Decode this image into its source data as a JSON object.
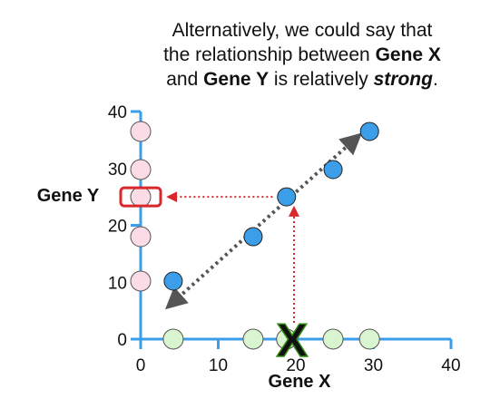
{
  "caption": {
    "line1": "Alternatively, we could say that",
    "line2_a": "the relationship between ",
    "line2_b": "Gene X",
    "line3_a": "and ",
    "line3_b": "Gene Y",
    "line3_c": " is relatively ",
    "line3_d": "strong",
    "line3_e": "."
  },
  "chart_data": {
    "type": "scatter",
    "xlabel": "Gene X",
    "ylabel": "Gene Y",
    "xlim": [
      0,
      40
    ],
    "ylim": [
      0,
      40
    ],
    "x_ticks": [
      0,
      10,
      20,
      30,
      40
    ],
    "y_ticks": [
      0,
      10,
      20,
      30,
      40
    ],
    "series": [
      {
        "role": "data-points",
        "color": "#3c9ee8",
        "x": [
          4.2,
          14.5,
          18.8,
          24.8,
          29.5
        ],
        "y": [
          10.2,
          18.0,
          25.0,
          29.8,
          36.5
        ]
      },
      {
        "role": "x-axis-projection",
        "color": "#d9f5d0",
        "x": [
          4.2,
          14.5,
          18.8,
          24.8,
          29.5
        ],
        "y": [
          0,
          0,
          0,
          0,
          0
        ]
      },
      {
        "role": "y-axis-projection",
        "color": "#fbdbe6",
        "x": [
          0,
          0,
          0,
          0,
          0
        ],
        "y": [
          10.2,
          18.0,
          25.0,
          29.8,
          36.5
        ]
      }
    ],
    "trend_arrow": {
      "x": [
        4.2,
        27.5
      ],
      "y": [
        6.5,
        35.0
      ],
      "color": "#555555"
    },
    "annotations": {
      "x_marker": {
        "x": 20,
        "y": 0,
        "symbol": "X",
        "color": "#6ccf2f"
      },
      "vertical_arrow": {
        "from": [
          20,
          0
        ],
        "to": [
          20,
          22.5
        ],
        "color": "#d8282b"
      },
      "horizontal_arrow": {
        "from": [
          17,
          25
        ],
        "to": [
          4,
          25
        ],
        "color": "#d8282b"
      },
      "highlight_box": {
        "x": 0,
        "y": 25,
        "color": "#d8282b"
      }
    }
  }
}
